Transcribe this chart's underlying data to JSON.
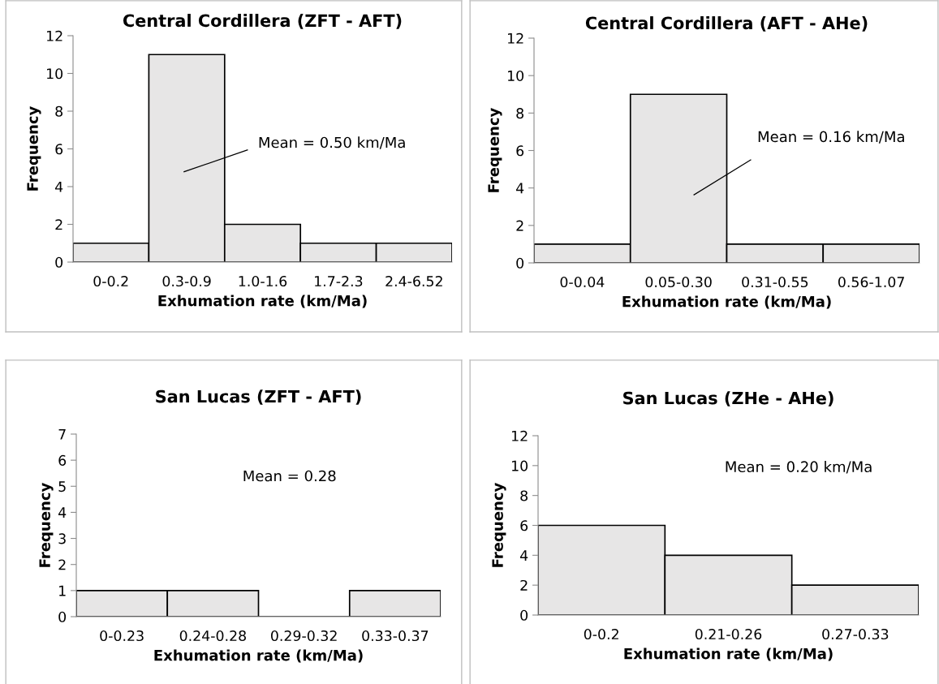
{
  "chart_data": [
    {
      "type": "bar",
      "title": "Central Cordillera (ZFT - AFT)",
      "xlabel": "Exhumation rate (km/Ma)",
      "ylabel": "Frequency",
      "categories": [
        "0-0.2",
        "0.3-0.9",
        "1.0-1.6",
        "1.7-2.3",
        "2.4-6.52"
      ],
      "values": [
        1,
        11,
        2,
        1,
        1
      ],
      "color": "#e7e6e6",
      "ylim": [
        0,
        12
      ],
      "yticks": [
        0,
        2,
        4,
        6,
        8,
        10,
        12
      ],
      "grid": false,
      "legend": false,
      "annotations": [
        "Mean = 0.50 km/Ma"
      ]
    },
    {
      "type": "bar",
      "title": "Central Cordillera (AFT - AHe)",
      "xlabel": "Exhumation rate (km/Ma)",
      "ylabel": "Frequency",
      "categories": [
        "0-0.04",
        "0.05-0.30",
        "0.31-0.55",
        "0.56-1.07"
      ],
      "values": [
        1,
        9,
        1,
        1
      ],
      "color": "#e7e6e6",
      "ylim": [
        0,
        12
      ],
      "yticks": [
        0,
        2,
        4,
        6,
        8,
        10,
        12
      ],
      "grid": false,
      "legend": false,
      "annotations": [
        "Mean = 0.16 km/Ma"
      ]
    },
    {
      "type": "bar",
      "title": "San Lucas (ZFT - AFT)",
      "xlabel": "Exhumation rate (km/Ma)",
      "ylabel": "Frequency",
      "categories": [
        "0-0.23",
        "0.24-0.28",
        "0.29-0.32",
        "0.33-0.37"
      ],
      "values": [
        1,
        1,
        0,
        1
      ],
      "color": "#e7e6e6",
      "ylim": [
        0,
        7
      ],
      "yticks": [
        0,
        1,
        2,
        3,
        4,
        5,
        6,
        7
      ],
      "grid": false,
      "legend": false,
      "annotations": [
        "Mean = 0.28"
      ]
    },
    {
      "type": "bar",
      "title": "San Lucas (ZHe - AHe)",
      "xlabel": "Exhumation rate (km/Ma)",
      "ylabel": "Frequency",
      "categories": [
        "0-0.2",
        "0.21-0.26",
        "0.27-0.33"
      ],
      "values": [
        6,
        4,
        2
      ],
      "color": "#e7e6e6",
      "ylim": [
        0,
        12
      ],
      "yticks": [
        0,
        2,
        4,
        6,
        8,
        10,
        12
      ],
      "grid": false,
      "legend": false,
      "annotations": [
        "Mean = 0.20 km/Ma"
      ]
    }
  ]
}
